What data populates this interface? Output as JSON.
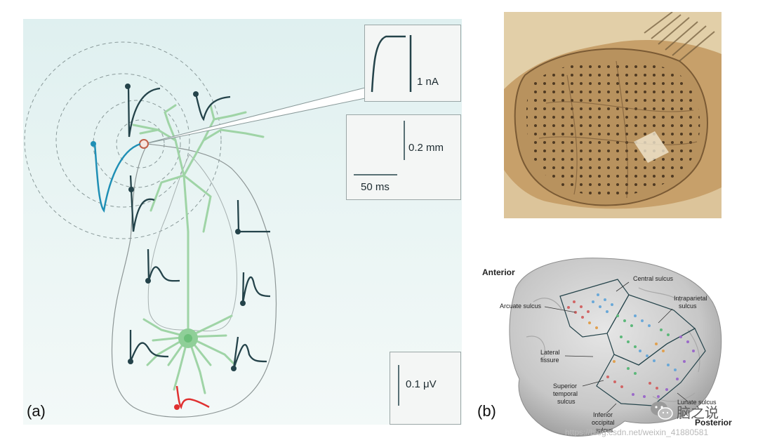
{
  "panel_a": {
    "label": "(a)",
    "current_scale": "1 nA",
    "distance_scale": "0.2 mm",
    "time_scale": "50 ms",
    "voltage_scale": "0.1 μV"
  },
  "panel_b": {
    "label": "(b)",
    "labels": {
      "anterior": "Anterior",
      "posterior": "Posterior",
      "central_sulcus": "Central sulcus",
      "arcuate_sulcus": "Arcuate sulcus",
      "intraparietal_1": "Intraparietal",
      "intraparietal_2": "sulcus",
      "lateral_1": "Lateral",
      "lateral_2": "fissure",
      "superior_1": "Superior",
      "superior_2": "temporal",
      "superior_3": "sulcus",
      "inferior_1": "Inferior",
      "inferior_2": "occipital",
      "inferior_3": "sulcus",
      "lunate_sulcus": "Lunate sulcus"
    }
  },
  "watermark": {
    "wechat_name": "脑之说",
    "url": "https://blog.csdn.net/weixin_41880581"
  },
  "colors": {
    "neuron": "#9fd4a6",
    "trace": "#24434a",
    "blue_trace": "#1f8fb5",
    "red_trace": "#e03131"
  }
}
